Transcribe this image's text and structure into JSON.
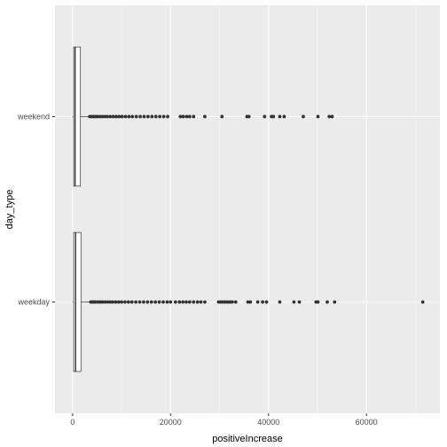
{
  "chart_data": {
    "type": "boxplot",
    "orientation": "horizontal",
    "xlabel": "positiveIncrease",
    "ylabel": "day_type",
    "xlim": [
      -3600,
      75000
    ],
    "x_ticks": [
      0,
      20000,
      40000,
      60000
    ],
    "x_tick_labels": [
      "0",
      "20000",
      "40000",
      "60000"
    ],
    "categories": [
      "weekday",
      "weekend"
    ],
    "grid": true,
    "colors": {
      "panel": "#ebebeb",
      "grid_major": "#ffffff",
      "grid_minor": "#f4f4f4",
      "box_fill": "#ffffff",
      "box_line": "#333333",
      "outlier": "#333333"
    },
    "boxes": [
      {
        "category": "weekday",
        "min": 0,
        "q1": 200,
        "median": 600,
        "q3": 1700,
        "max": 3600,
        "outliers": [
          3700,
          4000,
          4300,
          4600,
          5000,
          5400,
          5800,
          6200,
          6700,
          7200,
          7700,
          8200,
          8800,
          9400,
          10000,
          10700,
          11400,
          12100,
          12900,
          13700,
          14500,
          15300,
          16100,
          16900,
          17700,
          18500,
          19300,
          20000,
          21000,
          21800,
          22500,
          23200,
          23900,
          24700,
          25500,
          26200,
          27000,
          29800,
          30200,
          30600,
          31000,
          31400,
          31800,
          32200,
          32600,
          33300,
          35800,
          36300,
          37800,
          38800,
          39600,
          42300,
          45200,
          46300,
          49700,
          50100,
          52000,
          53500,
          71500
        ]
      },
      {
        "category": "weekend",
        "min": 0,
        "q1": 200,
        "median": 500,
        "q3": 1600,
        "max": 3400,
        "outliers": [
          3500,
          3900,
          4300,
          4700,
          5100,
          5600,
          6100,
          6600,
          7100,
          7700,
          8300,
          8900,
          9500,
          10100,
          10800,
          11500,
          12200,
          13000,
          13800,
          14600,
          15400,
          16200,
          17000,
          17800,
          18600,
          19400,
          22000,
          22600,
          23300,
          23900,
          24700,
          27000,
          30500,
          35600,
          36000,
          39200,
          40600,
          41000,
          42300,
          43200,
          47100,
          50100,
          52400,
          53000
        ]
      }
    ]
  }
}
